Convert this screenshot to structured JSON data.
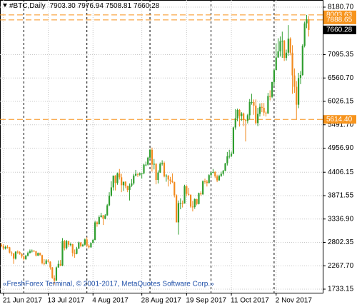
{
  "chart_data": {
    "type": "candlestick",
    "title": "#BTC,Daily",
    "title_value_labels": [
      "7903.30",
      "7976.94",
      "7508.81",
      "7660.28"
    ],
    "copyright": "«FreshForex Terminal, © 2001-2017, MetaQuotes Software Corp.»",
    "up_color": "#2f9e2f",
    "down_color": "#f28a1e",
    "grid": true,
    "ylim": [
      1651.5,
      8343.9
    ],
    "yticks": [
      {
        "value": 8180.7,
        "label": "8180.70"
      },
      {
        "value": 7095.35,
        "label": "7095.35"
      },
      {
        "value": 6560.7,
        "label": "6560.70"
      },
      {
        "value": 6026.15,
        "label": "6026.15"
      },
      {
        "value": 5491.7,
        "label": "5491.70"
      },
      {
        "value": 4956.9,
        "label": "4956.90"
      },
      {
        "value": 4406.15,
        "label": "4406.15"
      },
      {
        "value": 3871.55,
        "label": "3871.55"
      },
      {
        "value": 3336.9,
        "label": "3336.90"
      },
      {
        "value": 2802.35,
        "label": "2802.35"
      },
      {
        "value": 2267.7,
        "label": "2267.70"
      },
      {
        "value": 1733.15,
        "label": "1733.15"
      }
    ],
    "levels": [
      {
        "value": 8003.63,
        "label": "8003.63",
        "color": "#f7941d"
      },
      {
        "value": 7888.65,
        "label": "7888.65",
        "color": "#f7941d"
      },
      {
        "value": 5614.4,
        "label": "5614.40",
        "color": "#f7941d"
      }
    ],
    "current": {
      "value": 7660.28,
      "label": "7660.28",
      "color": "#000000"
    },
    "categories": [
      null,
      "21 Jun 2017",
      null,
      null,
      null,
      null,
      null,
      null,
      null,
      null,
      null,
      null,
      null,
      null,
      null,
      null,
      null,
      null,
      null,
      null,
      null,
      null,
      null,
      "13 Jul 2017",
      null,
      null,
      null,
      null,
      null,
      null,
      null,
      null,
      null,
      null,
      null,
      null,
      null,
      null,
      null,
      null,
      null,
      null,
      null,
      null,
      null,
      "4 Aug 2017",
      null,
      null,
      null,
      null,
      null,
      null,
      null,
      null,
      null,
      null,
      null,
      null,
      null,
      null,
      null,
      null,
      null,
      null,
      null,
      null,
      null,
      null,
      null,
      "28 Aug 2017",
      null,
      null,
      null,
      null,
      null,
      null,
      null,
      null,
      null,
      null,
      null,
      null,
      null,
      null,
      null,
      null,
      null,
      null,
      null,
      null,
      null,
      "19 Sep 2017",
      null,
      null,
      null,
      null,
      null,
      null,
      null,
      null,
      null,
      null,
      null,
      null,
      null,
      null,
      null,
      null,
      null,
      null,
      null,
      null,
      null,
      "11 Oct 2017",
      null,
      null,
      null,
      null,
      null,
      null,
      null,
      null,
      null,
      null,
      null,
      null,
      null,
      null,
      null,
      null,
      null,
      null,
      null,
      null,
      null,
      "2 Nov 2017",
      null,
      null,
      null,
      null,
      null,
      null,
      null,
      null,
      null,
      null,
      null,
      null,
      null,
      null,
      null,
      null
    ],
    "values": [
      [
        2750,
        2790,
        2690,
        2720
      ],
      [
        2720,
        2760,
        2630,
        2660
      ],
      [
        2660,
        2730,
        2640,
        2700
      ],
      [
        2700,
        2740,
        2660,
        2690
      ],
      [
        2690,
        2700,
        2550,
        2570
      ],
      [
        2570,
        2600,
        2490,
        2550
      ],
      [
        2550,
        2560,
        2310,
        2430
      ],
      [
        2430,
        2600,
        2410,
        2590
      ],
      [
        2590,
        2620,
        2540,
        2580
      ],
      [
        2580,
        2600,
        2520,
        2540
      ],
      [
        2540,
        2560,
        2440,
        2480
      ],
      [
        2480,
        2510,
        2390,
        2420
      ],
      [
        2420,
        2520,
        2400,
        2500
      ],
      [
        2500,
        2590,
        2480,
        2560
      ],
      [
        2560,
        2640,
        2550,
        2600
      ],
      [
        2600,
        2640,
        2570,
        2610
      ],
      [
        2610,
        2630,
        2580,
        2600
      ],
      [
        2600,
        2610,
        2480,
        2500
      ],
      [
        2500,
        2570,
        2490,
        2560
      ],
      [
        2560,
        2570,
        2500,
        2510
      ],
      [
        2510,
        2520,
        2300,
        2330
      ],
      [
        2330,
        2420,
        2280,
        2310
      ],
      [
        2310,
        2420,
        2300,
        2390
      ],
      [
        2390,
        2420,
        2340,
        2360
      ],
      [
        2360,
        2370,
        2180,
        2230
      ],
      [
        2230,
        2240,
        1970,
        1990
      ],
      [
        1990,
        2050,
        1840,
        1930
      ],
      [
        1930,
        2250,
        1920,
        2230
      ],
      [
        2230,
        2390,
        2220,
        2310
      ],
      [
        2310,
        2400,
        2260,
        2270
      ],
      [
        2270,
        2900,
        2260,
        2830
      ],
      [
        2830,
        2860,
        2620,
        2670
      ],
      [
        2670,
        2860,
        2640,
        2830
      ],
      [
        2830,
        2840,
        2700,
        2750
      ],
      [
        2750,
        2800,
        2710,
        2760
      ],
      [
        2760,
        2770,
        2480,
        2560
      ],
      [
        2560,
        2640,
        2450,
        2540
      ],
      [
        2540,
        2700,
        2530,
        2660
      ],
      [
        2660,
        2820,
        2650,
        2800
      ],
      [
        2800,
        2810,
        2690,
        2720
      ],
      [
        2720,
        2770,
        2700,
        2750
      ],
      [
        2750,
        2890,
        2730,
        2870
      ],
      [
        2870,
        2920,
        2690,
        2730
      ],
      [
        2730,
        2760,
        2660,
        2690
      ],
      [
        2690,
        2800,
        2680,
        2790
      ],
      [
        2790,
        2880,
        2780,
        2860
      ],
      [
        2860,
        3300,
        2850,
        3260
      ],
      [
        3260,
        3290,
        3160,
        3220
      ],
      [
        3220,
        3420,
        3210,
        3380
      ],
      [
        3380,
        3480,
        3370,
        3420
      ],
      [
        3420,
        3430,
        3200,
        3340
      ],
      [
        3340,
        3450,
        3330,
        3420
      ],
      [
        3420,
        3680,
        3410,
        3650
      ],
      [
        3650,
        3950,
        3630,
        3870
      ],
      [
        3870,
        4200,
        3850,
        4060
      ],
      [
        4060,
        4330,
        3990,
        4330
      ],
      [
        4330,
        4340,
        3990,
        4160
      ],
      [
        4160,
        4400,
        4120,
        4380
      ],
      [
        4380,
        4480,
        4240,
        4290
      ],
      [
        4290,
        4370,
        3950,
        4110
      ],
      [
        4110,
        4190,
        3980,
        4190
      ],
      [
        4190,
        4200,
        4040,
        4090
      ],
      [
        4090,
        4100,
        3950,
        4000
      ],
      [
        4000,
        4150,
        3760,
        4100
      ],
      [
        4100,
        4250,
        4070,
        4150
      ],
      [
        4150,
        4370,
        4120,
        4330
      ],
      [
        4330,
        4460,
        4310,
        4370
      ],
      [
        4370,
        4380,
        4300,
        4350
      ],
      [
        4350,
        4400,
        4320,
        4380
      ],
      [
        4380,
        4390,
        4260,
        4380
      ],
      [
        4380,
        4600,
        4360,
        4580
      ],
      [
        4580,
        4650,
        4540,
        4580
      ],
      [
        4580,
        4760,
        4560,
        4740
      ],
      [
        4740,
        4940,
        4720,
        4920
      ],
      [
        4920,
        4970,
        4420,
        4580
      ],
      [
        4580,
        4710,
        4470,
        4600
      ],
      [
        4600,
        4610,
        4130,
        4230
      ],
      [
        4230,
        4450,
        4150,
        4400
      ],
      [
        4400,
        4630,
        4390,
        4600
      ],
      [
        4600,
        4680,
        4560,
        4620
      ],
      [
        4620,
        4650,
        4290,
        4310
      ],
      [
        4310,
        4360,
        4190,
        4330
      ],
      [
        4330,
        4340,
        4080,
        4240
      ],
      [
        4240,
        4300,
        4130,
        4210
      ],
      [
        4210,
        4380,
        4160,
        4180
      ],
      [
        4180,
        4190,
        3830,
        3880
      ],
      [
        3880,
        3900,
        3260,
        3260
      ],
      [
        3260,
        3760,
        2980,
        3700
      ],
      [
        3700,
        3810,
        3560,
        3700
      ],
      [
        3700,
        3760,
        3600,
        3690
      ],
      [
        3690,
        4120,
        3690,
        4090
      ],
      [
        4090,
        4110,
        3850,
        3910
      ],
      [
        3910,
        4050,
        3870,
        3890
      ],
      [
        3890,
        3900,
        3590,
        3620
      ],
      [
        3620,
        3750,
        3510,
        3610
      ],
      [
        3610,
        3810,
        3570,
        3790
      ],
      [
        3790,
        3800,
        3650,
        3680
      ],
      [
        3680,
        3940,
        3670,
        3930
      ],
      [
        3930,
        3970,
        3870,
        3900
      ],
      [
        3900,
        4220,
        3890,
        4200
      ],
      [
        4200,
        4260,
        4140,
        4190
      ],
      [
        4190,
        4230,
        4080,
        4160
      ],
      [
        4160,
        4360,
        4150,
        4340
      ],
      [
        4340,
        4410,
        4290,
        4400
      ],
      [
        4400,
        4480,
        4380,
        4410
      ],
      [
        4410,
        4430,
        4270,
        4310
      ],
      [
        4310,
        4350,
        4180,
        4220
      ],
      [
        4220,
        4350,
        4210,
        4320
      ],
      [
        4320,
        4420,
        4300,
        4370
      ],
      [
        4370,
        4460,
        4330,
        4440
      ],
      [
        4440,
        4620,
        4430,
        4610
      ],
      [
        4610,
        4870,
        4560,
        4770
      ],
      [
        4770,
        4920,
        4720,
        4780
      ],
      [
        4780,
        4880,
        4750,
        4830
      ],
      [
        4830,
        5450,
        4820,
        5430
      ],
      [
        5430,
        5850,
        5380,
        5640
      ],
      [
        5640,
        5860,
        5570,
        5830
      ],
      [
        5830,
        5850,
        5450,
        5690
      ],
      [
        5690,
        5780,
        5580,
        5750
      ],
      [
        5750,
        5770,
        5460,
        5600
      ],
      [
        5600,
        5610,
        5110,
        5580
      ],
      [
        5580,
        5740,
        5520,
        5710
      ],
      [
        5710,
        6080,
        5610,
        6010
      ],
      [
        6010,
        6200,
        5950,
        6010
      ],
      [
        6010,
        6070,
        5720,
        5930
      ],
      [
        5930,
        6070,
        5500,
        5530
      ],
      [
        5530,
        5880,
        5460,
        5740
      ],
      [
        5740,
        5980,
        5680,
        5900
      ],
      [
        5900,
        5990,
        5780,
        5880
      ],
      [
        5880,
        5990,
        5700,
        5770
      ],
      [
        5770,
        5800,
        5680,
        5750
      ],
      [
        5750,
        6220,
        5740,
        6150
      ],
      [
        6150,
        6280,
        6050,
        6130
      ],
      [
        6130,
        6470,
        6100,
        6470
      ],
      [
        6470,
        6760,
        6380,
        6740
      ],
      [
        6740,
        7350,
        6740,
        7030
      ],
      [
        7030,
        7470,
        7020,
        7170
      ],
      [
        7170,
        7510,
        7050,
        7400
      ],
      [
        7400,
        7620,
        7020,
        7410
      ],
      [
        7410,
        7430,
        6950,
        7020
      ],
      [
        7020,
        7210,
        6960,
        7140
      ],
      [
        7140,
        7770,
        7070,
        7460
      ],
      [
        7460,
        7490,
        7080,
        7140
      ],
      [
        7140,
        7310,
        6200,
        6620
      ],
      [
        6620,
        6780,
        6220,
        6360
      ],
      [
        6360,
        6490,
        5614.4,
        5950
      ],
      [
        5950,
        6680,
        5870,
        6560
      ],
      [
        6560,
        6720,
        6420,
        6630
      ],
      [
        6630,
        7330,
        6610,
        7300
      ],
      [
        7300,
        7850,
        7260,
        7810
      ],
      [
        7810,
        8003.63,
        7700,
        7903.3
      ],
      [
        7903.3,
        7976.94,
        7508.81,
        7660.28
      ]
    ]
  }
}
